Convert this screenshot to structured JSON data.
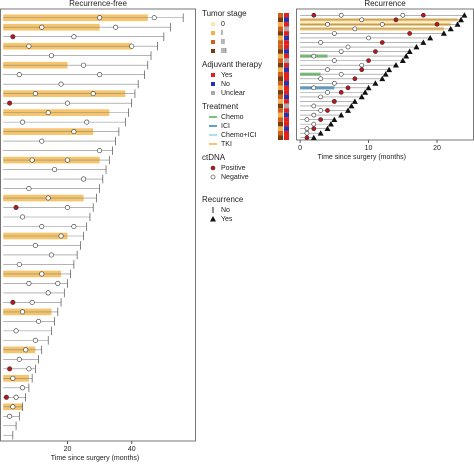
{
  "chart_data": [
    {
      "type": "swimmer",
      "title": "Recurrence-free",
      "x_label": "Time since surgery (months)",
      "xlim": [
        -1,
        60
      ],
      "xticks": [
        20,
        40
      ],
      "ends": [
        56,
        52,
        50,
        48,
        46,
        45,
        44,
        42,
        41,
        40,
        39,
        38,
        36,
        35,
        34,
        33,
        32,
        31,
        30,
        29,
        28,
        27,
        26,
        25,
        24,
        23,
        22,
        21,
        20,
        19,
        18,
        17,
        16,
        15,
        14,
        12,
        11,
        10,
        9,
        8,
        7,
        6,
        5,
        4,
        3
      ],
      "treatment": [
        "TKI",
        "TKI",
        null,
        "TKI",
        null,
        "TKI",
        null,
        null,
        "TKI",
        null,
        "TKI",
        null,
        "TKI",
        null,
        null,
        "TKI",
        null,
        null,
        null,
        "TKI",
        null,
        null,
        null,
        "TKI",
        null,
        null,
        null,
        "TKI",
        null,
        null,
        null,
        "TKI",
        null,
        null,
        null,
        "TKI",
        null,
        null,
        "TKI",
        null,
        null,
        "TKI",
        null,
        null,
        null
      ],
      "treatment_end": [
        45,
        30,
        null,
        40,
        null,
        20,
        null,
        null,
        38,
        null,
        33,
        null,
        28,
        null,
        null,
        30,
        null,
        null,
        null,
        25,
        null,
        null,
        null,
        20,
        null,
        null,
        null,
        18,
        null,
        null,
        null,
        15,
        null,
        null,
        null,
        10,
        null,
        null,
        8,
        null,
        null,
        6,
        null,
        null,
        null
      ],
      "ctdna_negative": [
        [
          30,
          47
        ],
        [
          12,
          35
        ],
        [
          22
        ],
        [
          8,
          40
        ],
        [
          15
        ],
        [
          25
        ],
        [
          5,
          30
        ],
        [
          18
        ],
        [
          10,
          28
        ],
        [
          20
        ],
        [
          14
        ],
        [
          6,
          26
        ],
        [
          22
        ],
        [
          12
        ],
        [
          30
        ],
        [
          9,
          20
        ],
        [
          16
        ],
        [
          25
        ],
        [
          8
        ],
        [
          14
        ],
        [
          20
        ],
        [
          6
        ],
        [
          12,
          22
        ],
        [
          18
        ],
        [
          10
        ],
        [
          15
        ],
        [
          5
        ],
        [
          12
        ],
        [
          8,
          17
        ],
        [
          14
        ],
        [
          9
        ],
        [
          6
        ],
        [
          11
        ],
        [
          4
        ],
        [
          10
        ],
        [
          7
        ],
        [
          5
        ],
        [
          8
        ],
        [
          3
        ],
        [
          6
        ],
        [
          4
        ],
        [
          3
        ],
        [
          2
        ],
        [],
        []
      ],
      "ctdna_positive": [
        [],
        [],
        [
          3
        ],
        [],
        [],
        [],
        [],
        [],
        [],
        [
          2
        ],
        [],
        [],
        [],
        [],
        [],
        [],
        [],
        [],
        [],
        [],
        [
          4
        ],
        [],
        [],
        [],
        [],
        [],
        [],
        [],
        [],
        [],
        [
          3
        ],
        [],
        [],
        [],
        [],
        [],
        [],
        [
          2
        ],
        [],
        [],
        [
          1
        ],
        [],
        [],
        [],
        []
      ]
    },
    {
      "type": "swimmer",
      "title": "Recurrence",
      "x_label": "Time since surgery (months)",
      "xlim": [
        -0.6,
        25.4
      ],
      "xticks": [
        0,
        10,
        20
      ],
      "stage": [
        "II",
        "III",
        "I",
        "II",
        "III",
        "I",
        "II",
        "II",
        "III",
        "I",
        "II",
        "III",
        "I",
        "II",
        "III",
        "II",
        "I",
        "III",
        "II",
        "I",
        "III",
        "II",
        "I",
        "II",
        "III",
        "I",
        "II",
        "III"
      ],
      "adjuvant": [
        "Yes",
        "No",
        "Yes",
        "Unclear",
        "Yes",
        "No",
        "Yes",
        "Yes",
        "No",
        "Yes",
        "Unclear",
        "Yes",
        "No",
        "Yes",
        "Yes",
        "No",
        "Yes",
        "Yes",
        "No",
        "Yes",
        "Unclear",
        "Yes",
        "No",
        "Yes",
        "Yes",
        "No",
        "Yes",
        "Yes"
      ],
      "ends": [
        24,
        23.5,
        23,
        22,
        21,
        19,
        18,
        17,
        16,
        15.5,
        15,
        14,
        13,
        12.5,
        12,
        11,
        10,
        9.5,
        9,
        8,
        7.5,
        7,
        6,
        5,
        4.5,
        4,
        3,
        2
      ],
      "recurrence": [
        24,
        23.5,
        23,
        22,
        21,
        19,
        18,
        17,
        16,
        15.5,
        15,
        14,
        13,
        12.5,
        12,
        11,
        10,
        9.5,
        9,
        8,
        7.5,
        7,
        6,
        5,
        4.5,
        4,
        3,
        2
      ],
      "treatment": [
        null,
        "TKI",
        "TKI",
        "TKI",
        null,
        null,
        null,
        null,
        null,
        "Chemo",
        null,
        null,
        null,
        "Chemo",
        null,
        null,
        "ICI",
        null,
        null,
        null,
        null,
        null,
        null,
        null,
        null,
        null,
        null,
        null
      ],
      "treatment_end": [
        null,
        23,
        22,
        21,
        null,
        null,
        null,
        null,
        null,
        4,
        null,
        null,
        null,
        3,
        null,
        null,
        5,
        null,
        null,
        null,
        null,
        null,
        null,
        null,
        null,
        null,
        null,
        null
      ],
      "ctdna_negative": [
        [
          6,
          15
        ],
        [
          9
        ],
        [
          4,
          12
        ],
        [
          8
        ],
        [
          5
        ],
        [
          10
        ],
        [
          3
        ],
        [
          7
        ],
        [
          6
        ],
        [
          2
        ],
        [
          5
        ],
        [
          9
        ],
        [
          4
        ],
        [
          6
        ],
        [
          3
        ],
        [
          5
        ],
        [
          2
        ],
        [
          4
        ],
        [
          3
        ],
        [
          5
        ],
        [
          2
        ],
        [
          3
        ],
        [
          2
        ],
        [
          1
        ],
        [
          2
        ],
        [
          1
        ],
        [
          1
        ],
        []
      ],
      "ctdna_positive": [
        [
          2,
          18
        ],
        [
          14
        ],
        [
          20
        ],
        [],
        [
          16
        ],
        [],
        [
          12
        ],
        [],
        [
          11
        ],
        [],
        [
          10
        ],
        [],
        [
          9
        ],
        [],
        [
          8
        ],
        [],
        [
          7
        ],
        [
          6
        ],
        [],
        [
          5
        ],
        [],
        [
          4
        ],
        [],
        [
          3
        ],
        [],
        [
          2
        ],
        [],
        [
          1
        ]
      ]
    }
  ],
  "legend": {
    "groups": [
      {
        "title": "Tumor stage",
        "items": [
          {
            "label": "0",
            "color": "#fbe6b2"
          },
          {
            "label": "I",
            "color": "#f4b04a"
          },
          {
            "label": "II",
            "color": "#d2601a"
          },
          {
            "label": "III",
            "color": "#7a3b0c"
          }
        ]
      },
      {
        "title": "Adjuvant therapy",
        "items": [
          {
            "label": "Yes",
            "color": "#e0201c"
          },
          {
            "label": "No",
            "color": "#2233b8"
          },
          {
            "label": "Unclear",
            "color": "#aaaaaa"
          }
        ]
      },
      {
        "title": "Treatment",
        "items": [
          {
            "label": "Chemo",
            "color": "#78c27a"
          },
          {
            "label": "ICI",
            "color": "#5f9fc9"
          },
          {
            "label": "Chemo+ICI",
            "color": "#aee0ef"
          },
          {
            "label": "TKI",
            "color": "#f6c46a"
          }
        ]
      },
      {
        "title": "ctDNA",
        "items": [
          {
            "label": "Positive",
            "color": "#c0141a"
          },
          {
            "label": "Negative",
            "color": "#ffffff"
          }
        ]
      },
      {
        "title": "Recurrence",
        "items": [
          {
            "label": "No",
            "color": "#222222"
          },
          {
            "label": "Yes",
            "color": "#111111"
          }
        ]
      }
    ]
  }
}
